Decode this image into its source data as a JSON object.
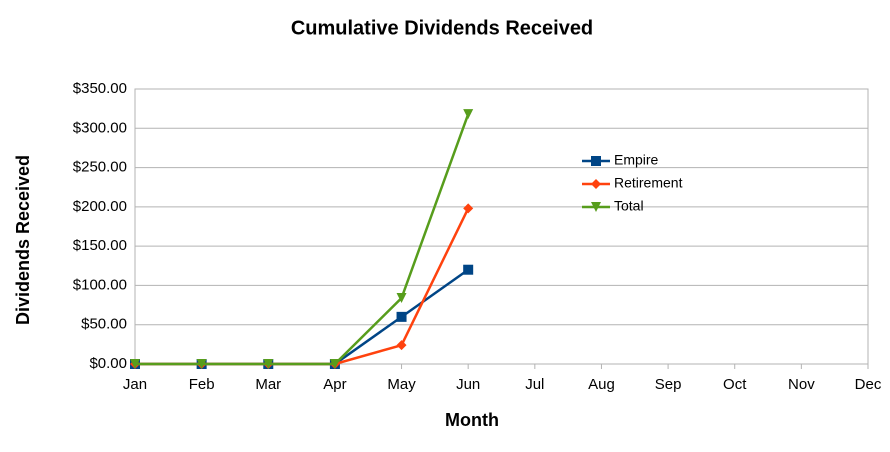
{
  "chart_data": {
    "type": "line",
    "title": "Cumulative Dividends Received",
    "x_label": "Month",
    "y_label": "Dividends Received",
    "categories": [
      "Jan",
      "Feb",
      "Mar",
      "Apr",
      "May",
      "Jun",
      "Jul",
      "Aug",
      "Sep",
      "Oct",
      "Nov",
      "Dec"
    ],
    "series": [
      {
        "name": "Empire",
        "color": "#004586",
        "marker": "square",
        "values": [
          0,
          0,
          0,
          0,
          60,
          120,
          null,
          null,
          null,
          null,
          null,
          null
        ]
      },
      {
        "name": "Retirement",
        "color": "#ff420e",
        "marker": "diamond",
        "values": [
          0,
          0,
          0,
          0,
          24,
          198,
          null,
          null,
          null,
          null,
          null,
          null
        ]
      },
      {
        "name": "Total",
        "color": "#579d1c",
        "marker": "triangle-down",
        "values": [
          0,
          0,
          0,
          0,
          84,
          318,
          null,
          null,
          null,
          null,
          null,
          null
        ]
      }
    ],
    "ylim": [
      0,
      350
    ],
    "yticks": [
      {
        "value": 0,
        "label": "$0.00"
      },
      {
        "value": 50,
        "label": "$50.00"
      },
      {
        "value": 100,
        "label": "$100.00"
      },
      {
        "value": 150,
        "label": "$150.00"
      },
      {
        "value": 200,
        "label": "$200.00"
      },
      {
        "value": 250,
        "label": "$250.00"
      },
      {
        "value": 300,
        "label": "$300.00"
      },
      {
        "value": 350,
        "label": "$350.00"
      }
    ],
    "grid": true,
    "legend": "upper right"
  }
}
